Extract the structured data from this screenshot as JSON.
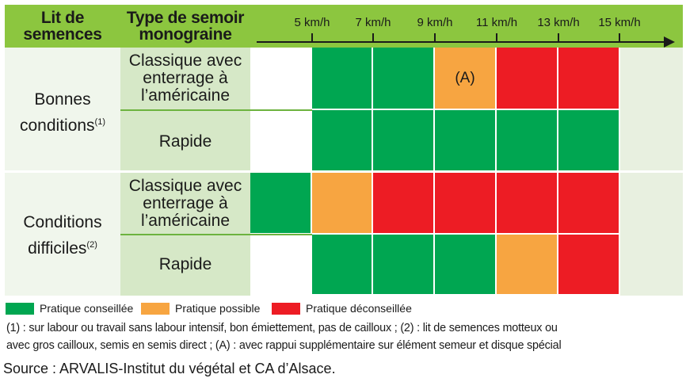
{
  "header": {
    "col1_line1": "Lit de",
    "col1_line2": "semences",
    "col2_line1": "Type de semoir",
    "col2_line2": "monograine"
  },
  "rows": [
    {
      "condition_line1": "Bonnes",
      "condition_line2": "conditions",
      "condition_sup": "(1)",
      "types": [
        {
          "line1": "Classique avec",
          "line2": "enterrage à",
          "line3": "l’américaine"
        },
        {
          "line1": "Rapide"
        }
      ]
    },
    {
      "condition_line1": "Conditions",
      "condition_line2": "difficiles",
      "condition_sup": "(2)",
      "types": [
        {
          "line1": "Classique avec",
          "line2": "enterrage à",
          "line3": "l’américaine"
        },
        {
          "line1": "Rapide"
        }
      ]
    }
  ],
  "chart_data": {
    "type": "heatmap",
    "x_axis_ticks": [
      "5 km/h",
      "7 km/h",
      "9 km/h",
      "11 km/h",
      "13 km/h",
      "15 km/h"
    ],
    "rows": [
      {
        "condition": "Bonnes conditions",
        "semoir": "Classique avec enterrage à l’américaine",
        "cells": [
          "none",
          "conseillee",
          "conseillee",
          "possible",
          "deconseillee",
          "deconseillee"
        ],
        "annotations": [
          "",
          "",
          "",
          "(A)",
          "",
          ""
        ]
      },
      {
        "condition": "Bonnes conditions",
        "semoir": "Rapide",
        "cells": [
          "none",
          "conseillee",
          "conseillee",
          "conseillee",
          "conseillee",
          "conseillee"
        ],
        "annotations": [
          "",
          "",
          "",
          "",
          "",
          ""
        ]
      },
      {
        "condition": "Conditions difficiles",
        "semoir": "Classique avec enterrage à l’américaine",
        "cells": [
          "conseillee",
          "possible",
          "deconseillee",
          "deconseillee",
          "deconseillee",
          "deconseillee"
        ],
        "annotations": [
          "",
          "",
          "",
          "",
          "",
          ""
        ]
      },
      {
        "condition": "Conditions difficiles",
        "semoir": "Rapide",
        "cells": [
          "none",
          "conseillee",
          "conseillee",
          "conseillee",
          "possible",
          "deconseillee"
        ],
        "annotations": [
          "",
          "",
          "",
          "",
          "",
          ""
        ]
      }
    ],
    "categories": {
      "conseillee": {
        "label": "Pratique conseillée",
        "color": "#00a651"
      },
      "possible": {
        "label": "Pratique possible",
        "color": "#f7a541"
      },
      "deconseillee": {
        "label": "Pratique déconseillée",
        "color": "#ed1c24"
      }
    },
    "legend_order": [
      "conseillee",
      "possible",
      "deconseillee"
    ]
  },
  "footnotes": {
    "line1": "(1) : sur labour ou travail sans labour intensif, bon émiettement, pas de cailloux ; (2) : lit de semences motteux ou",
    "line2": "avec gros cailloux, semis en semis direct ; (A) : avec rappui supplémentaire sur élément semeur et disque spécial",
    "source": "Source : ARVALIS-Institut du végétal et CA d’Alsace."
  }
}
